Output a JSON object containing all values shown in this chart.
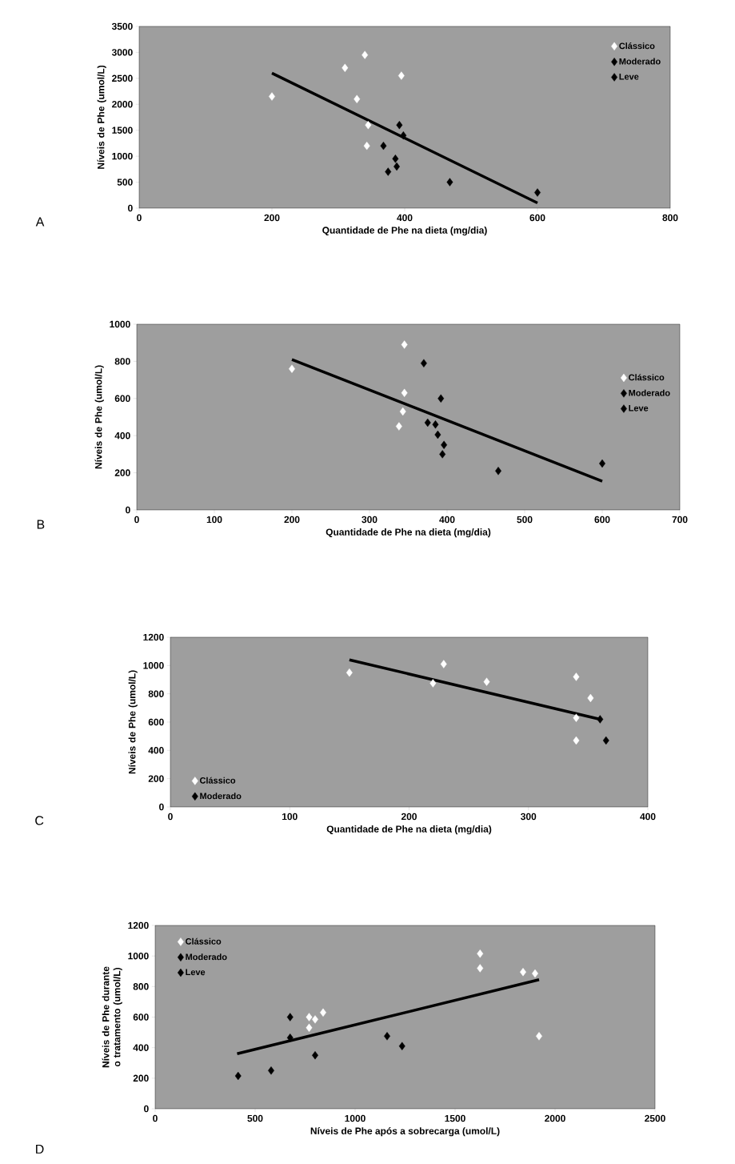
{
  "chart_data": [
    {
      "type": "scatter",
      "xlabel": "Quantidade de Phe na dieta (mg/dia)",
      "ylabel": "Níveis de Phe (umol/L)",
      "xlim": [
        0,
        800
      ],
      "ylim": [
        0,
        3500
      ],
      "xticks": [
        0,
        200,
        400,
        600,
        800
      ],
      "yticks": [
        0,
        500,
        1000,
        1500,
        2000,
        2500,
        3000,
        3500
      ],
      "legend": "top right",
      "marker": "diamond",
      "annotations": [
        "A"
      ],
      "series": [
        {
          "name": "Clássico",
          "color": "#ffffff",
          "x": [
            200,
            310,
            340,
            395,
            328,
            345,
            343
          ],
          "values": [
            2150,
            2700,
            2950,
            2550,
            2100,
            1600,
            1200
          ]
        },
        {
          "name": "Moderado",
          "color": "#000000",
          "x": [
            392,
            398,
            368,
            386
          ],
          "values": [
            1600,
            1400,
            1200,
            950
          ]
        },
        {
          "name": "Leve",
          "color": "#000000",
          "x": [
            388,
            375,
            468,
            600
          ],
          "values": [
            800,
            700,
            500,
            300
          ]
        },
        {
          "type": "line",
          "color": "#000000",
          "line_style": "solid",
          "x": [
            200,
            600
          ],
          "values": [
            2600,
            100
          ],
          "marker": "none"
        }
      ]
    },
    {
      "type": "scatter",
      "xlabel": "Quantidade de Phe na dieta (mg/dia)",
      "ylabel": "Níveis de Phe (umol/L)",
      "xlim": [
        0,
        700
      ],
      "ylim": [
        0,
        1000
      ],
      "xticks": [
        0,
        100,
        200,
        300,
        400,
        500,
        600,
        700
      ],
      "yticks": [
        0,
        200,
        400,
        600,
        800,
        1000
      ],
      "legend": "right",
      "marker": "diamond",
      "annotations": [
        "B"
      ],
      "series": [
        {
          "name": "Clássico",
          "color": "#ffffff",
          "x": [
            345,
            200,
            345,
            343,
            338
          ],
          "values": [
            890,
            760,
            630,
            530,
            450
          ]
        },
        {
          "name": "Moderado",
          "color": "#000000",
          "x": [
            370,
            392,
            375,
            385
          ],
          "values": [
            790,
            600,
            470,
            460
          ]
        },
        {
          "name": "Leve",
          "color": "#000000",
          "x": [
            388,
            396,
            394,
            466,
            600
          ],
          "values": [
            405,
            350,
            300,
            210,
            250
          ]
        },
        {
          "type": "line",
          "color": "#000000",
          "line_style": "solid",
          "x": [
            200,
            600
          ],
          "values": [
            810,
            155
          ],
          "marker": "none"
        }
      ]
    },
    {
      "type": "scatter",
      "xlabel": "Quantidade de Phe na dieta (mg/dia)",
      "ylabel": "Níveis de Phe (umol/L)",
      "xlim": [
        0,
        400
      ],
      "ylim": [
        0,
        1200
      ],
      "xticks": [
        0,
        100,
        200,
        300,
        400
      ],
      "yticks": [
        0,
        200,
        400,
        600,
        800,
        1000,
        1200
      ],
      "legend": "bottom left",
      "marker": "diamond",
      "annotations": [
        "C"
      ],
      "series": [
        {
          "name": "Clássico",
          "color": "#ffffff",
          "x": [
            150,
            229,
            220,
            265,
            340,
            352,
            340,
            340
          ],
          "values": [
            950,
            1010,
            875,
            885,
            920,
            770,
            630,
            470
          ]
        },
        {
          "name": "Moderado",
          "color": "#000000",
          "x": [
            360,
            365
          ],
          "values": [
            620,
            470
          ]
        },
        {
          "type": "line",
          "color": "#000000",
          "line_style": "solid",
          "x": [
            150,
            360
          ],
          "values": [
            1040,
            620
          ],
          "marker": "none"
        }
      ]
    },
    {
      "type": "scatter",
      "xlabel": "Níveis de Phe após a sobrecarga (umol/L)",
      "ylabel": "Níveis de Phe durante o tratamento (umol/L)",
      "xlim": [
        0,
        2500
      ],
      "ylim": [
        0,
        1200
      ],
      "xticks": [
        0,
        500,
        1000,
        1500,
        2000,
        2500
      ],
      "yticks": [
        0,
        200,
        400,
        600,
        800,
        1000,
        1200
      ],
      "legend": "top left",
      "marker": "diamond",
      "annotations": [
        "D"
      ],
      "series": [
        {
          "name": "Clássico",
          "color": "#ffffff",
          "x": [
            1625,
            1625,
            1840,
            1900,
            1920,
            770,
            800,
            840,
            770
          ],
          "values": [
            1015,
            920,
            895,
            885,
            475,
            600,
            585,
            630,
            530
          ]
        },
        {
          "name": "Moderado",
          "color": "#000000",
          "x": [
            675,
            1160,
            1235
          ],
          "values": [
            600,
            475,
            410
          ]
        },
        {
          "name": "Leve",
          "color": "#000000",
          "x": [
            675,
            800,
            580,
            415
          ],
          "values": [
            465,
            350,
            250,
            215
          ]
        },
        {
          "type": "line",
          "color": "#000000",
          "line_style": "solid",
          "x": [
            410,
            1920
          ],
          "values": [
            360,
            845
          ],
          "marker": "none"
        }
      ]
    }
  ]
}
